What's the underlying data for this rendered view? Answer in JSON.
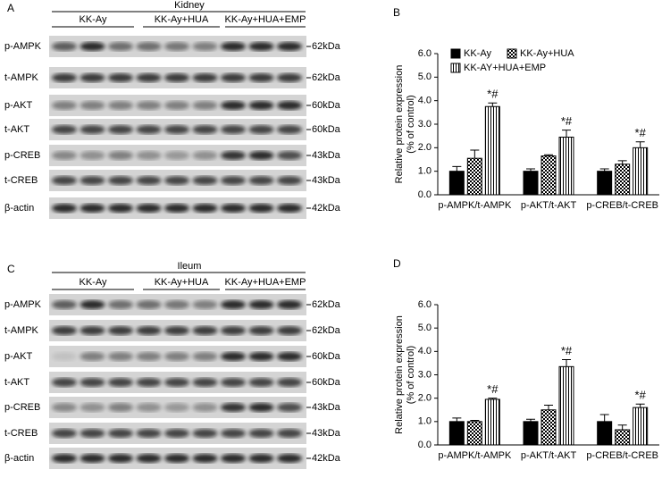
{
  "panels": [
    {
      "letter": "A",
      "tissue": "Kidney",
      "groups": [
        "KK-Ay",
        "KK-Ay+HUA",
        "KK-Ay+HUA+EMP"
      ],
      "rows": [
        {
          "label": "p-AMPK",
          "size": "62kDa"
        },
        {
          "label": "t-AMPK",
          "size": "62kDa"
        },
        {
          "label": "p-AKT",
          "size": "60kDa"
        },
        {
          "label": "t-AKT",
          "size": "60kDa"
        },
        {
          "label": "p-CREB",
          "size": "43kDa"
        },
        {
          "label": "t-CREB",
          "size": "43kDa"
        },
        {
          "label": "β-actin",
          "size": "42kDa"
        }
      ]
    },
    {
      "letter": "C",
      "tissue": "Ileum",
      "groups": [
        "KK-Ay",
        "KK-Ay+HUA",
        "KK-Ay+HUA+EMP"
      ],
      "rows": [
        {
          "label": "p-AMPK",
          "size": "62kDa"
        },
        {
          "label": "t-AMPK",
          "size": "62kDa"
        },
        {
          "label": "p-AKT",
          "size": "60kDa"
        },
        {
          "label": "t-AKT",
          "size": "60kDa"
        },
        {
          "label": "p-CREB",
          "size": "43kDa"
        },
        {
          "label": "t-CREB",
          "size": "43kDa"
        },
        {
          "label": "β-actin",
          "size": "42kDa"
        }
      ]
    }
  ],
  "chart_data": [
    {
      "type": "bar",
      "letter": "B",
      "ylabel": [
        "Relative protein expression",
        "(% of control)"
      ],
      "categories": [
        "p-AMPK/t-AMPK",
        "p-AKT/t-AKT",
        "p-CREB/t-CREB"
      ],
      "series": [
        {
          "name": "KK-Ay",
          "color": "#000000",
          "pattern": "solid",
          "values": [
            1.0,
            1.0,
            1.0
          ],
          "errors": [
            0.2,
            0.1,
            0.1
          ]
        },
        {
          "name": "KK-Ay+HUA",
          "color": "#000000",
          "pattern": "checker",
          "values": [
            1.55,
            1.65,
            1.3
          ],
          "errors": [
            0.35,
            0.05,
            0.15
          ]
        },
        {
          "name": "KK-AY+HUA+EMP",
          "color": "#000000",
          "pattern": "stripes",
          "values": [
            3.75,
            2.45,
            2.0
          ],
          "errors": [
            0.15,
            0.3,
            0.25
          ],
          "significance": [
            "*#",
            "*#",
            "*#"
          ]
        }
      ],
      "ylim": [
        0,
        6
      ],
      "yticks": [
        {
          "value": 0,
          "label": "0.0"
        },
        {
          "value": 1,
          "label": "1.0"
        },
        {
          "value": 2,
          "label": "2.0"
        },
        {
          "value": 3,
          "label": "3.0"
        },
        {
          "value": 4,
          "label": "4.0"
        },
        {
          "value": 5,
          "label": "5.0"
        },
        {
          "value": 6,
          "label": "6.0"
        }
      ],
      "legend": "top-left"
    },
    {
      "type": "bar",
      "letter": "D",
      "ylabel": [
        "Relative protein expression",
        "(% of control)"
      ],
      "categories": [
        "p-AMPK/t-AMPK",
        "p-AKT/t-AKT",
        "p-CREB/t-CREB"
      ],
      "series": [
        {
          "color": "#000000",
          "pattern": "solid",
          "values": [
            1.0,
            1.0,
            1.0
          ],
          "errors": [
            0.15,
            0.1,
            0.3
          ]
        },
        {
          "color": "#000000",
          "pattern": "checker",
          "values": [
            1.0,
            1.5,
            0.65
          ],
          "errors": [
            0.05,
            0.2,
            0.2
          ]
        },
        {
          "color": "#000000",
          "pattern": "stripes",
          "values": [
            1.95,
            3.35,
            1.6
          ],
          "errors": [
            0.05,
            0.3,
            0.15
          ],
          "significance": [
            "*#",
            "*#",
            "*#"
          ]
        }
      ],
      "ylim": [
        0,
        6
      ],
      "yticks": [
        {
          "value": 0,
          "label": "0.0"
        },
        {
          "value": 1,
          "label": "1.0"
        },
        {
          "value": 2,
          "label": "2.0"
        },
        {
          "value": 3,
          "label": "3.0"
        },
        {
          "value": 4,
          "label": "4.0"
        },
        {
          "value": 5,
          "label": "5.0"
        },
        {
          "value": 6,
          "label": "6.0"
        }
      ]
    }
  ]
}
